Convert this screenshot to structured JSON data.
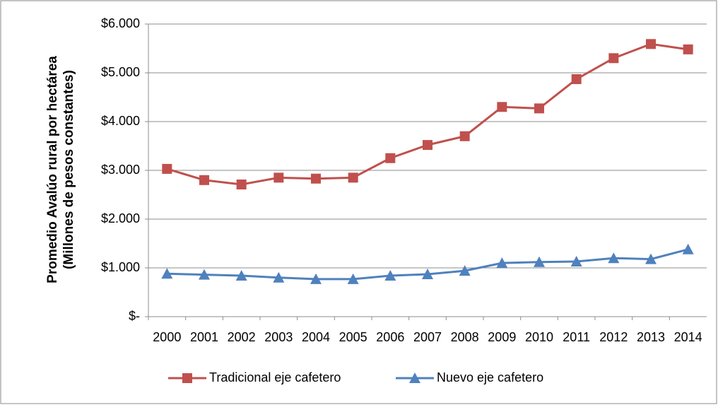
{
  "chart_data": {
    "type": "line",
    "ylabel": [
      "Promedio Avalúo rural por hectárea",
      "(Millones de pesos constantes)"
    ],
    "categories": [
      "2000",
      "2001",
      "2002",
      "2003",
      "2004",
      "2005",
      "2006",
      "2007",
      "2008",
      "2009",
      "2010",
      "2011",
      "2012",
      "2013",
      "2014"
    ],
    "series": [
      {
        "name": "Tradicional eje cafetero",
        "color": "#c0504d",
        "marker": "square",
        "values": [
          3030,
          2800,
          2710,
          2850,
          2830,
          2850,
          3250,
          3520,
          3700,
          4300,
          4270,
          4870,
          5300,
          5590,
          5480
        ]
      },
      {
        "name": "Nuevo eje cafetero",
        "color": "#4f81bd",
        "marker": "triangle",
        "values": [
          880,
          860,
          840,
          800,
          770,
          770,
          840,
          870,
          940,
          1100,
          1120,
          1130,
          1200,
          1180,
          1380
        ]
      }
    ],
    "ylim": [
      0,
      6000
    ],
    "yticks": [
      {
        "value": 0,
        "label": "$-"
      },
      {
        "value": 1000,
        "label": "$1.000"
      },
      {
        "value": 2000,
        "label": "$2.000"
      },
      {
        "value": 3000,
        "label": "$3.000"
      },
      {
        "value": 4000,
        "label": "$4.000"
      },
      {
        "value": 5000,
        "label": "$5.000"
      },
      {
        "value": 6000,
        "label": "$6.000"
      }
    ],
    "grid": true,
    "legend": "bottom"
  }
}
